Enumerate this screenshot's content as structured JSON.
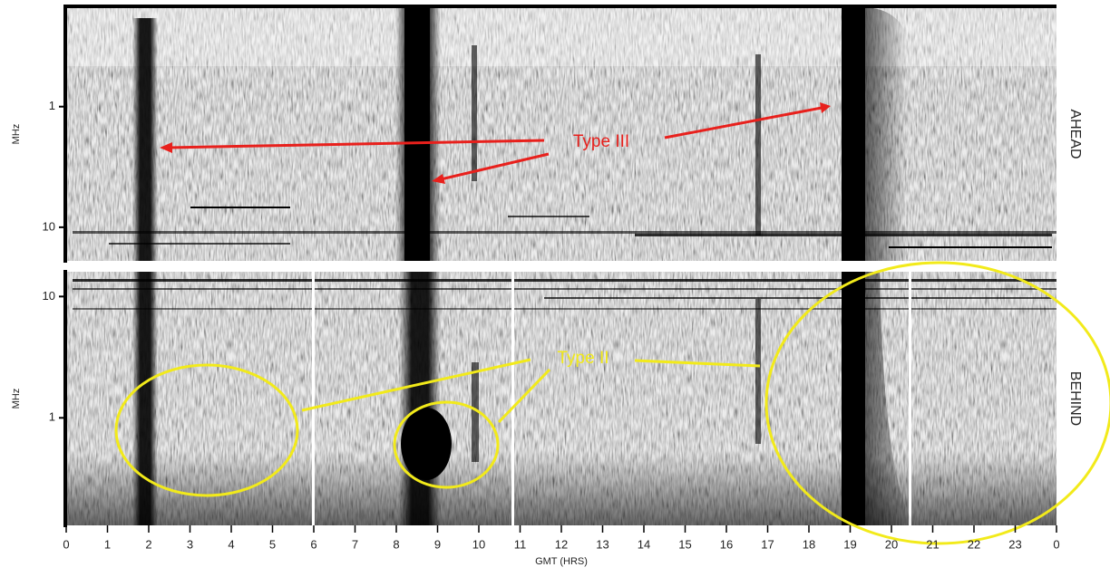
{
  "chart_data": [
    {
      "type": "spectrogram",
      "label": "AHEAD",
      "ylabel": "MHz",
      "log_y": true,
      "ylim": [
        19,
        0.15
      ],
      "yticks": [
        1,
        10
      ],
      "xlim": [
        0,
        24
      ],
      "annotations": [
        "Type III"
      ]
    },
    {
      "type": "spectrogram",
      "label": "BEHIND",
      "ylabel": "MHz",
      "log_y": true,
      "ylim": [
        0.13,
        16
      ],
      "yticks": [
        1,
        10
      ],
      "xlim": [
        0,
        24
      ],
      "xticks": [
        0,
        1,
        2,
        3,
        4,
        5,
        6,
        7,
        8,
        9,
        10,
        11,
        12,
        13,
        14,
        15,
        16,
        17,
        18,
        19,
        20,
        21,
        22,
        23,
        {
          "value": 24,
          "label": "0"
        }
      ],
      "xlabel": "GMT (HRS)",
      "annotations": [
        "Type II"
      ]
    }
  ]
}
